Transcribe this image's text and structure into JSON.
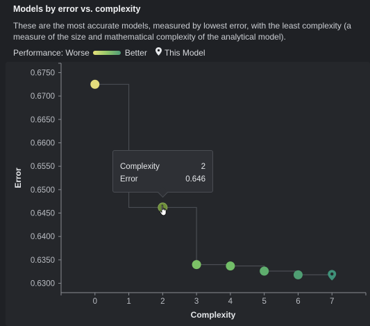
{
  "header": {
    "title": "Models by error vs. complexity",
    "description": "These are the most accurate models, measured by lowest error, with the least complexity (a measure of the size and mathematical complexity of the analytical model)."
  },
  "legend": {
    "prefix": "Performance: Worse",
    "suffix": "Better",
    "this_model_label": "This Model",
    "gradient_colors": [
      "#e6e07a",
      "#93c76a",
      "#4f9c78"
    ]
  },
  "tooltip": {
    "rows": [
      {
        "label": "Complexity",
        "value": "2"
      },
      {
        "label": "Error",
        "value": "0.646"
      }
    ]
  },
  "chart_data": {
    "type": "scatter",
    "xlabel": "Complexity",
    "ylabel": "Error",
    "xlim": [
      -1,
      8
    ],
    "ylim": [
      0.628,
      0.677
    ],
    "x_ticks": [
      0,
      1,
      2,
      3,
      4,
      5,
      6,
      7
    ],
    "y_ticks": [
      "0.6300",
      "0.6350",
      "0.6400",
      "0.6450",
      "0.6500",
      "0.6550",
      "0.6600",
      "0.6650",
      "0.6700",
      "0.6750"
    ],
    "grid": false,
    "step_line": true,
    "points": [
      {
        "x": 0,
        "y": 0.6725,
        "color": "#e3dc7c"
      },
      {
        "x": 2,
        "y": 0.6462,
        "color": "#6e8f3a",
        "highlighted": true
      },
      {
        "x": 3,
        "y": 0.634,
        "color": "#7cc266"
      },
      {
        "x": 4,
        "y": 0.6337,
        "color": "#72be68"
      },
      {
        "x": 5,
        "y": 0.6326,
        "color": "#5fae6e"
      },
      {
        "x": 6,
        "y": 0.6318,
        "color": "#4f9e73"
      },
      {
        "x": 7,
        "y": 0.6318,
        "color": "#3f9179",
        "this_model": true
      }
    ]
  }
}
